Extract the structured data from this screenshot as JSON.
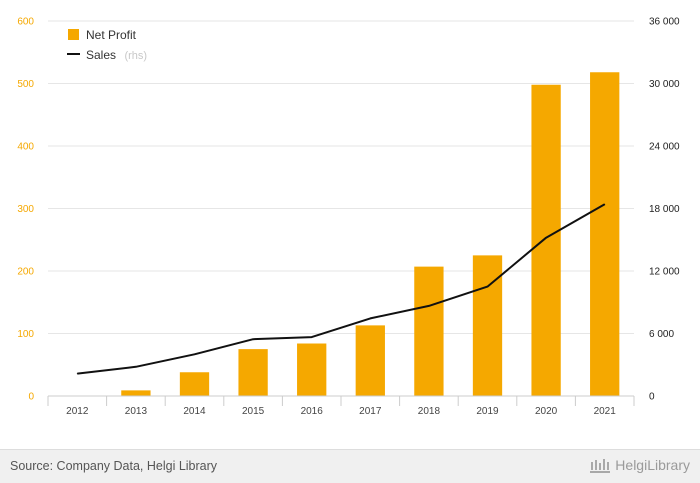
{
  "chart_data": {
    "type": "bar+line",
    "categories": [
      "2012",
      "2013",
      "2014",
      "2015",
      "2016",
      "2017",
      "2018",
      "2019",
      "2020",
      "2021"
    ],
    "series": [
      {
        "name": "Net Profit",
        "type": "bar",
        "axis": "left",
        "color": "#f5a800",
        "values": [
          0,
          9,
          38,
          75,
          84,
          113,
          207,
          225,
          498,
          518
        ]
      },
      {
        "name": "Sales",
        "type": "line",
        "axis": "right",
        "color": "#111111",
        "values": [
          2150,
          2800,
          4000,
          5450,
          5650,
          7450,
          8650,
          10500,
          15200,
          18400
        ]
      }
    ],
    "left_axis": {
      "ylim": [
        0,
        600
      ],
      "ticks": [
        "0",
        "100",
        "200",
        "300",
        "400",
        "500",
        "600"
      ]
    },
    "right_axis": {
      "ylim": [
        0,
        36000
      ],
      "ticks": [
        "0",
        "6 000",
        "12 000",
        "18 000",
        "24 000",
        "30 000",
        "36 000"
      ]
    },
    "legend": {
      "position": "top-left",
      "bar_label": "Net Profit",
      "line_label": "Sales",
      "line_note": "(rhs)"
    },
    "grid": true
  },
  "footer": {
    "source": "Source: Company Data, Helgi Library",
    "brand": "HelgiLibrary"
  }
}
